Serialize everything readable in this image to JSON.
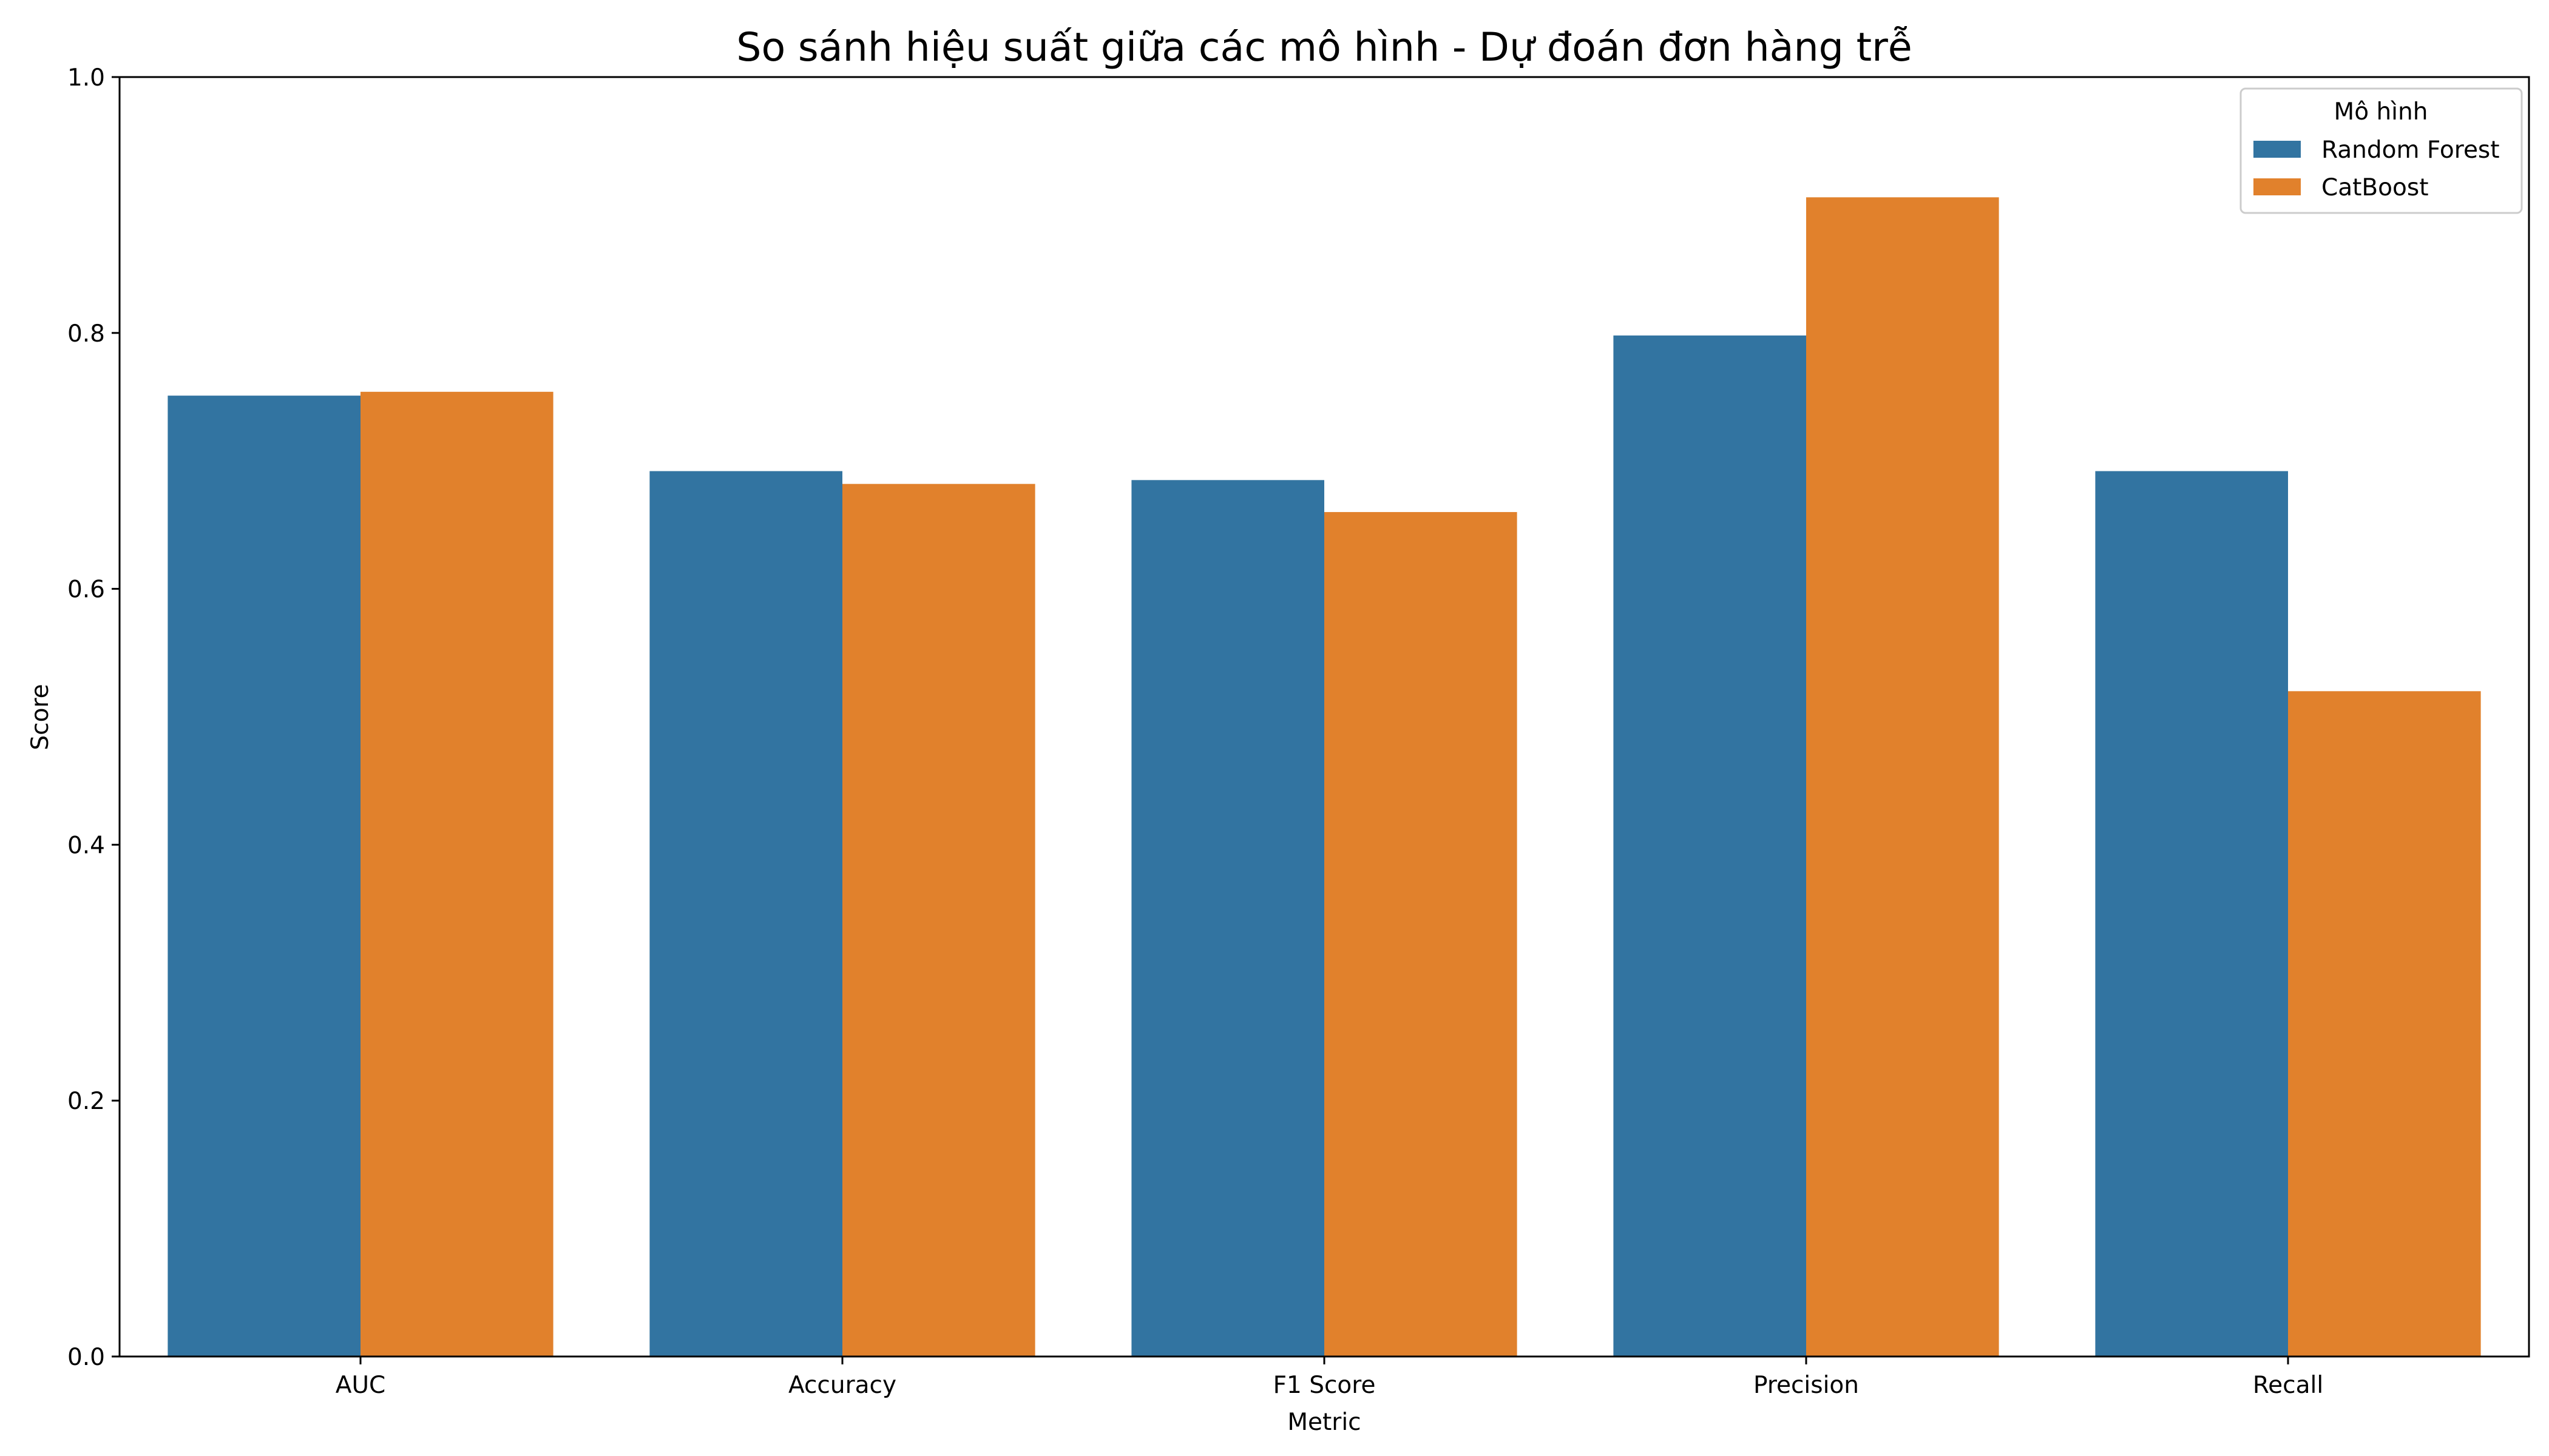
{
  "chart_data": {
    "type": "bar",
    "title": "So sánh hiệu suất giữa các mô hình - Dự đoán đơn hàng trễ",
    "xlabel": "Metric",
    "ylabel": "Score",
    "categories": [
      "AUC",
      "Accuracy",
      "F1 Score",
      "Precision",
      "Recall"
    ],
    "series": [
      {
        "name": "Random Forest",
        "color": "#3274a1",
        "values": [
          0.751,
          0.692,
          0.685,
          0.798,
          0.692
        ]
      },
      {
        "name": "CatBoost",
        "color": "#e1812c",
        "values": [
          0.754,
          0.682,
          0.66,
          0.906,
          0.52
        ]
      }
    ],
    "ylim": [
      0,
      1.0
    ],
    "yticks": [
      "0.0",
      "0.2",
      "0.4",
      "0.6",
      "0.8",
      "1.0"
    ],
    "ytick_values": [
      0.0,
      0.2,
      0.4,
      0.6,
      0.8,
      1.0
    ],
    "grid": false,
    "legend": {
      "title": "Mô hình",
      "placement": "top-right"
    }
  }
}
